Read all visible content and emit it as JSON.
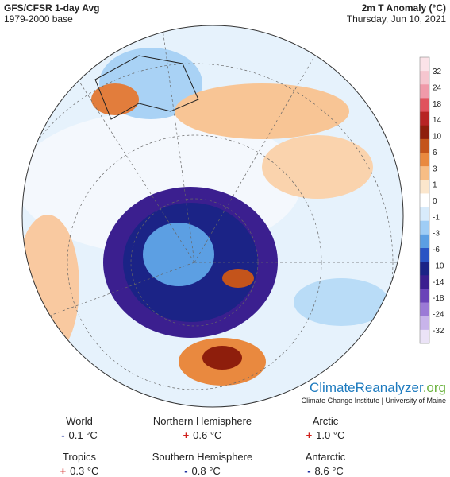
{
  "header": {
    "title": "GFS/CFSR 1-day Avg",
    "subtitle": "1979-2000 base",
    "variable": "2m T Anomaly (°C)",
    "date": "Thursday, Jun 10, 2021"
  },
  "colorbar": {
    "labels": [
      "32",
      "24",
      "18",
      "14",
      "10",
      "6",
      "3",
      "1",
      "0",
      "-1",
      "-3",
      "-6",
      "-10",
      "-14",
      "-18",
      "-24",
      "-32"
    ],
    "colors": [
      "#fbe3e8",
      "#f6c6cf",
      "#f09aa9",
      "#e0525d",
      "#b72424",
      "#8e1e0c",
      "#c4541b",
      "#e9893f",
      "#f7bd85",
      "#fbe6cc",
      "#ffffff",
      "#d8ebfb",
      "#9fcdf5",
      "#5c9fe3",
      "#2a54c4",
      "#1b2386",
      "#3b1f8f",
      "#6a44b8",
      "#9b7ad6",
      "#c8b4ea",
      "#ebe3f7"
    ]
  },
  "logo": {
    "name": "ClimateReanalyzer",
    "suffix": ".org",
    "credit": "Climate Change Institute | University of Maine"
  },
  "stats": [
    {
      "label": "World",
      "sign": "-",
      "value": "0.1 °C"
    },
    {
      "label": "Northern Hemisphere",
      "sign": "+",
      "value": "0.6 °C"
    },
    {
      "label": "Arctic",
      "sign": "+",
      "value": "1.0 °C"
    },
    {
      "label": "Tropics",
      "sign": "+",
      "value": "0.3 °C"
    },
    {
      "label": "Southern Hemisphere",
      "sign": "-",
      "value": "0.8 °C"
    },
    {
      "label": "Antarctic",
      "sign": "-",
      "value": "8.6 °C"
    }
  ]
}
